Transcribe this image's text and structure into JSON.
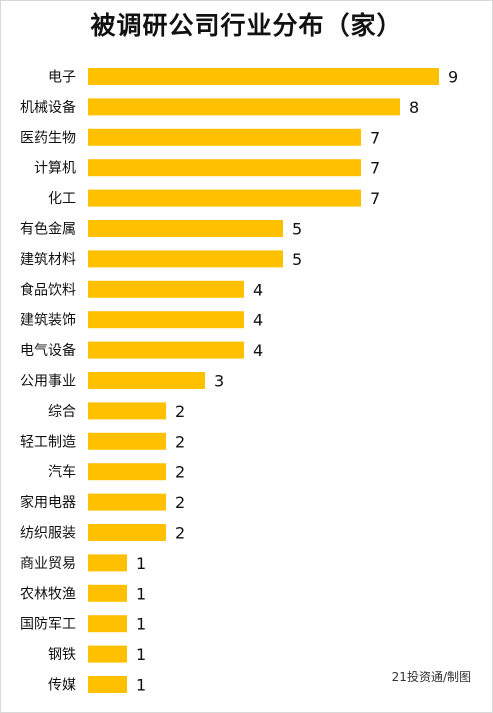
{
  "title": "被调研公司行业分布（家）",
  "credit": "21投资通/制图",
  "colors": {
    "bar": "#FFC000",
    "text": "#111111"
  },
  "chart_data": {
    "type": "bar",
    "orientation": "horizontal",
    "title": "被调研公司行业分布（家）",
    "categories": [
      "电子",
      "机械设备",
      "医药生物",
      "计算机",
      "化工",
      "有色金属",
      "建筑材料",
      "食品饮料",
      "建筑装饰",
      "电气设备",
      "公用事业",
      "综合",
      "轻工制造",
      "汽车",
      "家用电器",
      "纺织服装",
      "商业贸易",
      "农林牧渔",
      "国防军工",
      "钢铁",
      "传媒"
    ],
    "values": [
      9,
      8,
      7,
      7,
      7,
      5,
      5,
      4,
      4,
      4,
      3,
      2,
      2,
      2,
      2,
      2,
      1,
      1,
      1,
      1,
      1
    ],
    "xlim": [
      0,
      9
    ],
    "grid": false,
    "legend": false,
    "data_labels": true
  }
}
